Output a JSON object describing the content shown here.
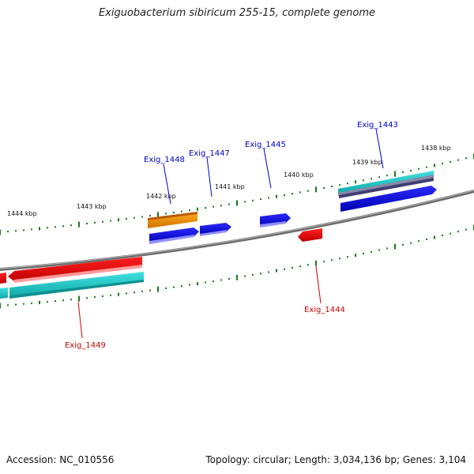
{
  "title": "Exiguobacterium sibiricum 255-15, complete genome",
  "footer": {
    "accession": "Accession: NC_010556",
    "summary": "Topology: circular; Length: 3,034,136 bp; Genes: 3,104"
  },
  "scale_labels": [
    "1444 kbp",
    "1443 kbp",
    "1442 kbp",
    "1441 kbp",
    "1440 kbp",
    "1439 kbp",
    "1438 kbp"
  ],
  "genes": [
    {
      "name": "Exig_1448",
      "color": "#0000cc"
    },
    {
      "name": "Exig_1447",
      "color": "#0000cc"
    },
    {
      "name": "Exig_1445",
      "color": "#0000cc"
    },
    {
      "name": "Exig_1443",
      "color": "#0000cc"
    },
    {
      "name": "Exig_1449",
      "color": "#cc0000"
    },
    {
      "name": "Exig_1444",
      "color": "#cc0000"
    }
  ],
  "colors": {
    "backbone": "#7a7a7a",
    "forward_cds": "#0000e6",
    "reverse_cds": "#e60000",
    "rna_cyan": "#19c8c8",
    "orange_feature": "#f59a0a",
    "tick": "#1a7a1a"
  }
}
